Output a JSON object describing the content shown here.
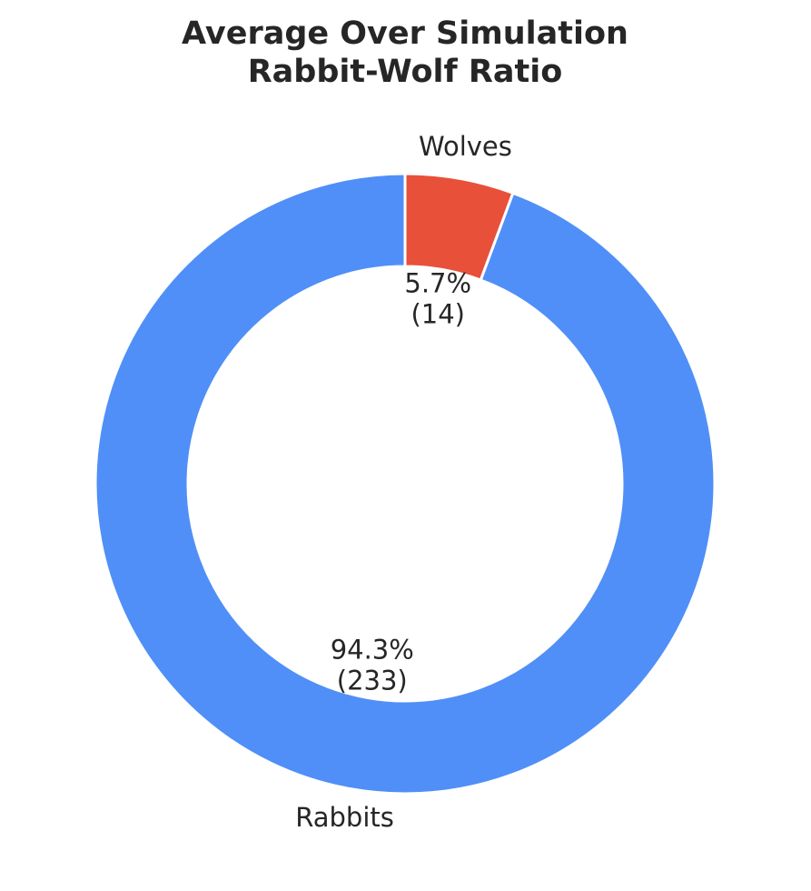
{
  "chart_data": {
    "type": "pie",
    "donut": true,
    "title_lines": [
      "Average Over Simulation",
      "Rabbit-Wolf Ratio"
    ],
    "start_angle_deg": 90,
    "direction": "clockwise",
    "slices": [
      {
        "label": "Wolves",
        "value": 14,
        "percent_label": "5.7%",
        "count_label": "(14)",
        "color": "#e8503a"
      },
      {
        "label": "Rabbits",
        "value": 233,
        "percent_label": "94.3%",
        "count_label": "(233)",
        "color": "#508ff7"
      }
    ],
    "legend": "none"
  }
}
